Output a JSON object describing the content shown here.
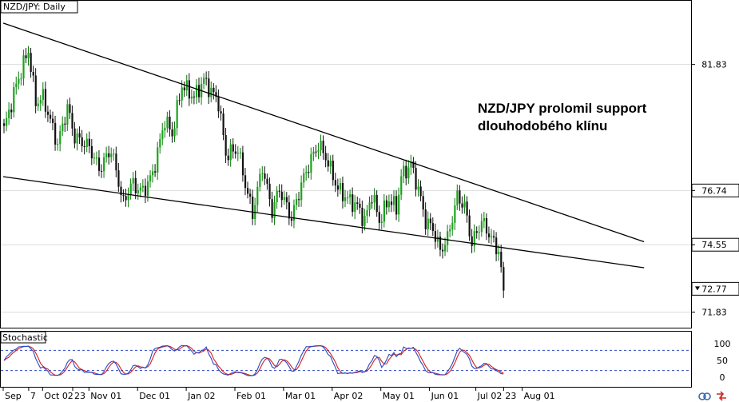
{
  "chart": {
    "symbol_label": "NZD/JPY: Daily",
    "annotation": [
      "NZD/JPY prolomil support",
      "dlouhodobého klínu"
    ],
    "indicator_label": "Stochastic",
    "price_ticks": [
      "81.83",
      "76.74",
      "74.55",
      "71.83"
    ],
    "current_price": "72.77",
    "stoch_ticks": [
      "100",
      "50",
      "0"
    ],
    "date_ticks": [
      "Sep",
      "7",
      "Oct 02",
      "23",
      "Nov 01",
      "Dec 01",
      "Jan 02",
      "Feb 01",
      "Mar 01",
      "Apr 02",
      "May 01",
      "Jun 01",
      "Jul 02",
      "23",
      "Aug 01"
    ]
  },
  "chart_data": {
    "type": "candlestick",
    "title": "NZD/JPY: Daily",
    "ylim": [
      71.2,
      84.4
    ],
    "price_levels": [
      81.83,
      76.74,
      74.55,
      72.77,
      71.83
    ],
    "anchors": [
      [
        0,
        79.2
      ],
      [
        5,
        81.0
      ],
      [
        10,
        82.4
      ],
      [
        13,
        80.3
      ],
      [
        16,
        80.5
      ],
      [
        22,
        78.6
      ],
      [
        26,
        80.1
      ],
      [
        29,
        78.9
      ],
      [
        35,
        78.5
      ],
      [
        39,
        77.6
      ],
      [
        44,
        78.4
      ],
      [
        49,
        76.2
      ],
      [
        52,
        77.0
      ],
      [
        57,
        76.7
      ],
      [
        61,
        77.4
      ],
      [
        66,
        79.6
      ],
      [
        69,
        79.0
      ],
      [
        73,
        81.0
      ],
      [
        78,
        80.5
      ],
      [
        82,
        81.2
      ],
      [
        88,
        80.3
      ],
      [
        91,
        78.2
      ],
      [
        96,
        78.4
      ],
      [
        99,
        77.0
      ],
      [
        102,
        75.8
      ],
      [
        106,
        77.7
      ],
      [
        110,
        75.9
      ],
      [
        113,
        76.8
      ],
      [
        118,
        75.6
      ],
      [
        122,
        77.0
      ],
      [
        126,
        78.0
      ],
      [
        129,
        78.6
      ],
      [
        132,
        78.1
      ],
      [
        137,
        76.8
      ],
      [
        141,
        76.4
      ],
      [
        145,
        76.1
      ],
      [
        148,
        75.5
      ],
      [
        151,
        76.6
      ],
      [
        154,
        75.5
      ],
      [
        158,
        76.4
      ],
      [
        161,
        76.0
      ],
      [
        163,
        77.3
      ],
      [
        167,
        77.8
      ],
      [
        170,
        76.8
      ],
      [
        173,
        75.5
      ],
      [
        176,
        75.2
      ],
      [
        179,
        74.3
      ],
      [
        182,
        74.8
      ],
      [
        186,
        76.5
      ],
      [
        189,
        76.1
      ],
      [
        192,
        74.6
      ],
      [
        196,
        75.5
      ],
      [
        199,
        75.0
      ],
      [
        201,
        74.6
      ],
      [
        203,
        74.3
      ],
      [
        205,
        72.7
      ]
    ],
    "upper_trendline": {
      "start": [
        0,
        83.5
      ],
      "end": [
        263,
        74.67
      ]
    },
    "lower_trendline": {
      "start": [
        0,
        77.3
      ],
      "end": [
        263,
        73.62
      ]
    },
    "stochastic": {
      "levels": [
        80,
        20
      ],
      "ylim": [
        0,
        100
      ]
    }
  }
}
